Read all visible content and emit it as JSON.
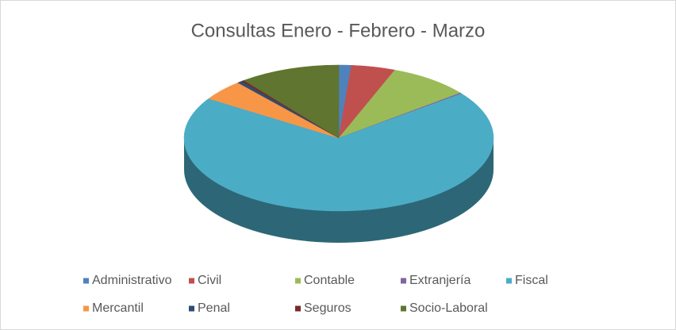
{
  "chart_data": {
    "type": "pie3d",
    "title": "Consultas Enero - Febrero - Marzo",
    "categories": [
      "Administrativo",
      "Civil",
      "Contable",
      "Extranjería",
      "Fiscal",
      "Mercantil",
      "Penal",
      "Seguros",
      "Socio-Laboral"
    ],
    "values": [
      1.3,
      4.6,
      8.5,
      0.2,
      69.5,
      4.6,
      0.5,
      0.3,
      10.5
    ],
    "colors": [
      "#4f81bd",
      "#c0504d",
      "#9bbb59",
      "#8064a2",
      "#4bacc6",
      "#f79646",
      "#2c4d75",
      "#772c2a",
      "#5f7530"
    ],
    "legend": "bottom"
  }
}
